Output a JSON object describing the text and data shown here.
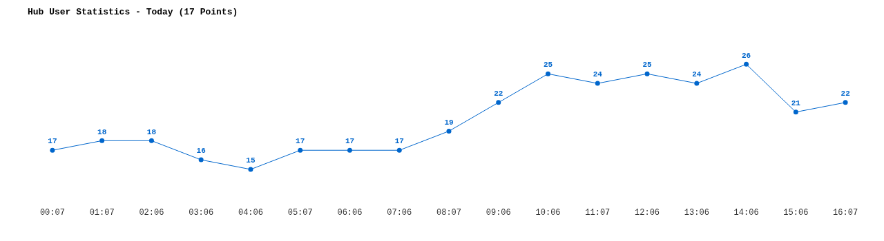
{
  "chart_data": {
    "type": "line",
    "title": "Hub User Statistics - Today (17 Points)",
    "categories": [
      "00:07",
      "01:07",
      "02:06",
      "03:06",
      "04:06",
      "05:07",
      "06:06",
      "07:06",
      "08:07",
      "09:06",
      "10:06",
      "11:07",
      "12:06",
      "13:06",
      "14:06",
      "15:06",
      "16:07"
    ],
    "series": [
      {
        "color": "#0066cc",
        "values": [
          17,
          18,
          18,
          16,
          15,
          17,
          17,
          17,
          19,
          22,
          25,
          24,
          25,
          24,
          26,
          21,
          22
        ]
      }
    ],
    "data_labels": true,
    "grid": false,
    "legend": false,
    "marker": "circle",
    "line_style": "solid",
    "tick_labels": "x"
  }
}
